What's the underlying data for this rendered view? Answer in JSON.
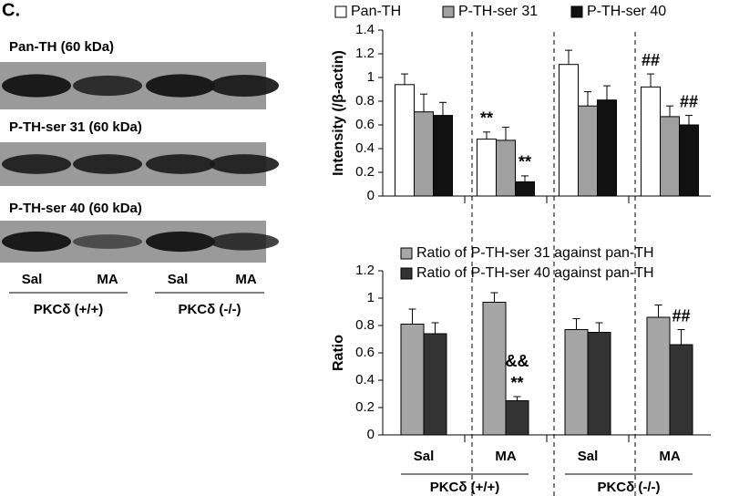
{
  "panel_label": "C.",
  "blots": [
    {
      "label": "Pan-TH (60 kDa)"
    },
    {
      "label": "P-TH-ser 31 (60 kDa)"
    },
    {
      "label": "P-TH-ser 40 (60 kDa)"
    }
  ],
  "blot_lanes": [
    "Sal",
    "MA",
    "Sal",
    "MA"
  ],
  "blot_groups": [
    "PKCδ (+/+)",
    "PKCδ (-/-)"
  ],
  "chart_data": [
    {
      "type": "bar",
      "ylabel": "Intensity (/β-actin)",
      "categories": [
        null,
        null,
        null,
        null
      ],
      "series": [
        {
          "name": "Pan-TH",
          "color": "#ffffff",
          "values": [
            0.94,
            0.48,
            1.11,
            0.92
          ],
          "errors": [
            0.09,
            0.06,
            0.12,
            0.11
          ]
        },
        {
          "name": "P-TH-ser 31",
          "color": "#a0a0a0",
          "values": [
            0.71,
            0.47,
            0.76,
            0.67
          ],
          "errors": [
            0.15,
            0.11,
            0.12,
            0.09
          ]
        },
        {
          "name": "P-TH-ser 40",
          "color": "#111111",
          "values": [
            0.68,
            0.12,
            0.81,
            0.6
          ],
          "errors": [
            0.11,
            0.05,
            0.12,
            0.08
          ]
        }
      ],
      "ylim": [
        0,
        1.4
      ],
      "yticks": [
        0,
        0.2,
        0.4,
        0.6,
        0.8,
        1,
        1.2,
        1.4
      ],
      "legend": "top",
      "annotations": [
        {
          "text": "**",
          "category": 1,
          "series": 0
        },
        {
          "text": "**",
          "category": 1,
          "series": 2
        },
        {
          "text": "##",
          "category": 3,
          "series": 0
        },
        {
          "text": "##",
          "category": 3,
          "series": 2
        }
      ]
    },
    {
      "type": "bar",
      "ylabel": "Ratio",
      "categories": [
        "Sal",
        "MA",
        "Sal",
        "MA"
      ],
      "groups": [
        "PKCδ (+/+)",
        "PKCδ (-/-)"
      ],
      "series": [
        {
          "name": "Ratio of P-TH-ser 31 against pan-TH",
          "color": "#a6a6a6",
          "values": [
            0.81,
            0.97,
            0.77,
            0.86
          ],
          "errors": [
            0.11,
            0.07,
            0.08,
            0.09
          ]
        },
        {
          "name": "Ratio of P-TH-ser 40 against pan-TH",
          "color": "#333333",
          "values": [
            0.74,
            0.25,
            0.75,
            0.66
          ],
          "errors": [
            0.08,
            0.03,
            0.07,
            0.11
          ]
        }
      ],
      "ylim": [
        0,
        1.2
      ],
      "yticks": [
        0,
        0.2,
        0.4,
        0.6,
        0.8,
        1,
        1.2
      ],
      "legend": "top",
      "annotations": [
        {
          "text": "**",
          "category": 1,
          "series": 1
        },
        {
          "text": "&&",
          "category": 1,
          "series": 1
        },
        {
          "text": "##",
          "category": 3,
          "series": 1
        }
      ]
    }
  ]
}
